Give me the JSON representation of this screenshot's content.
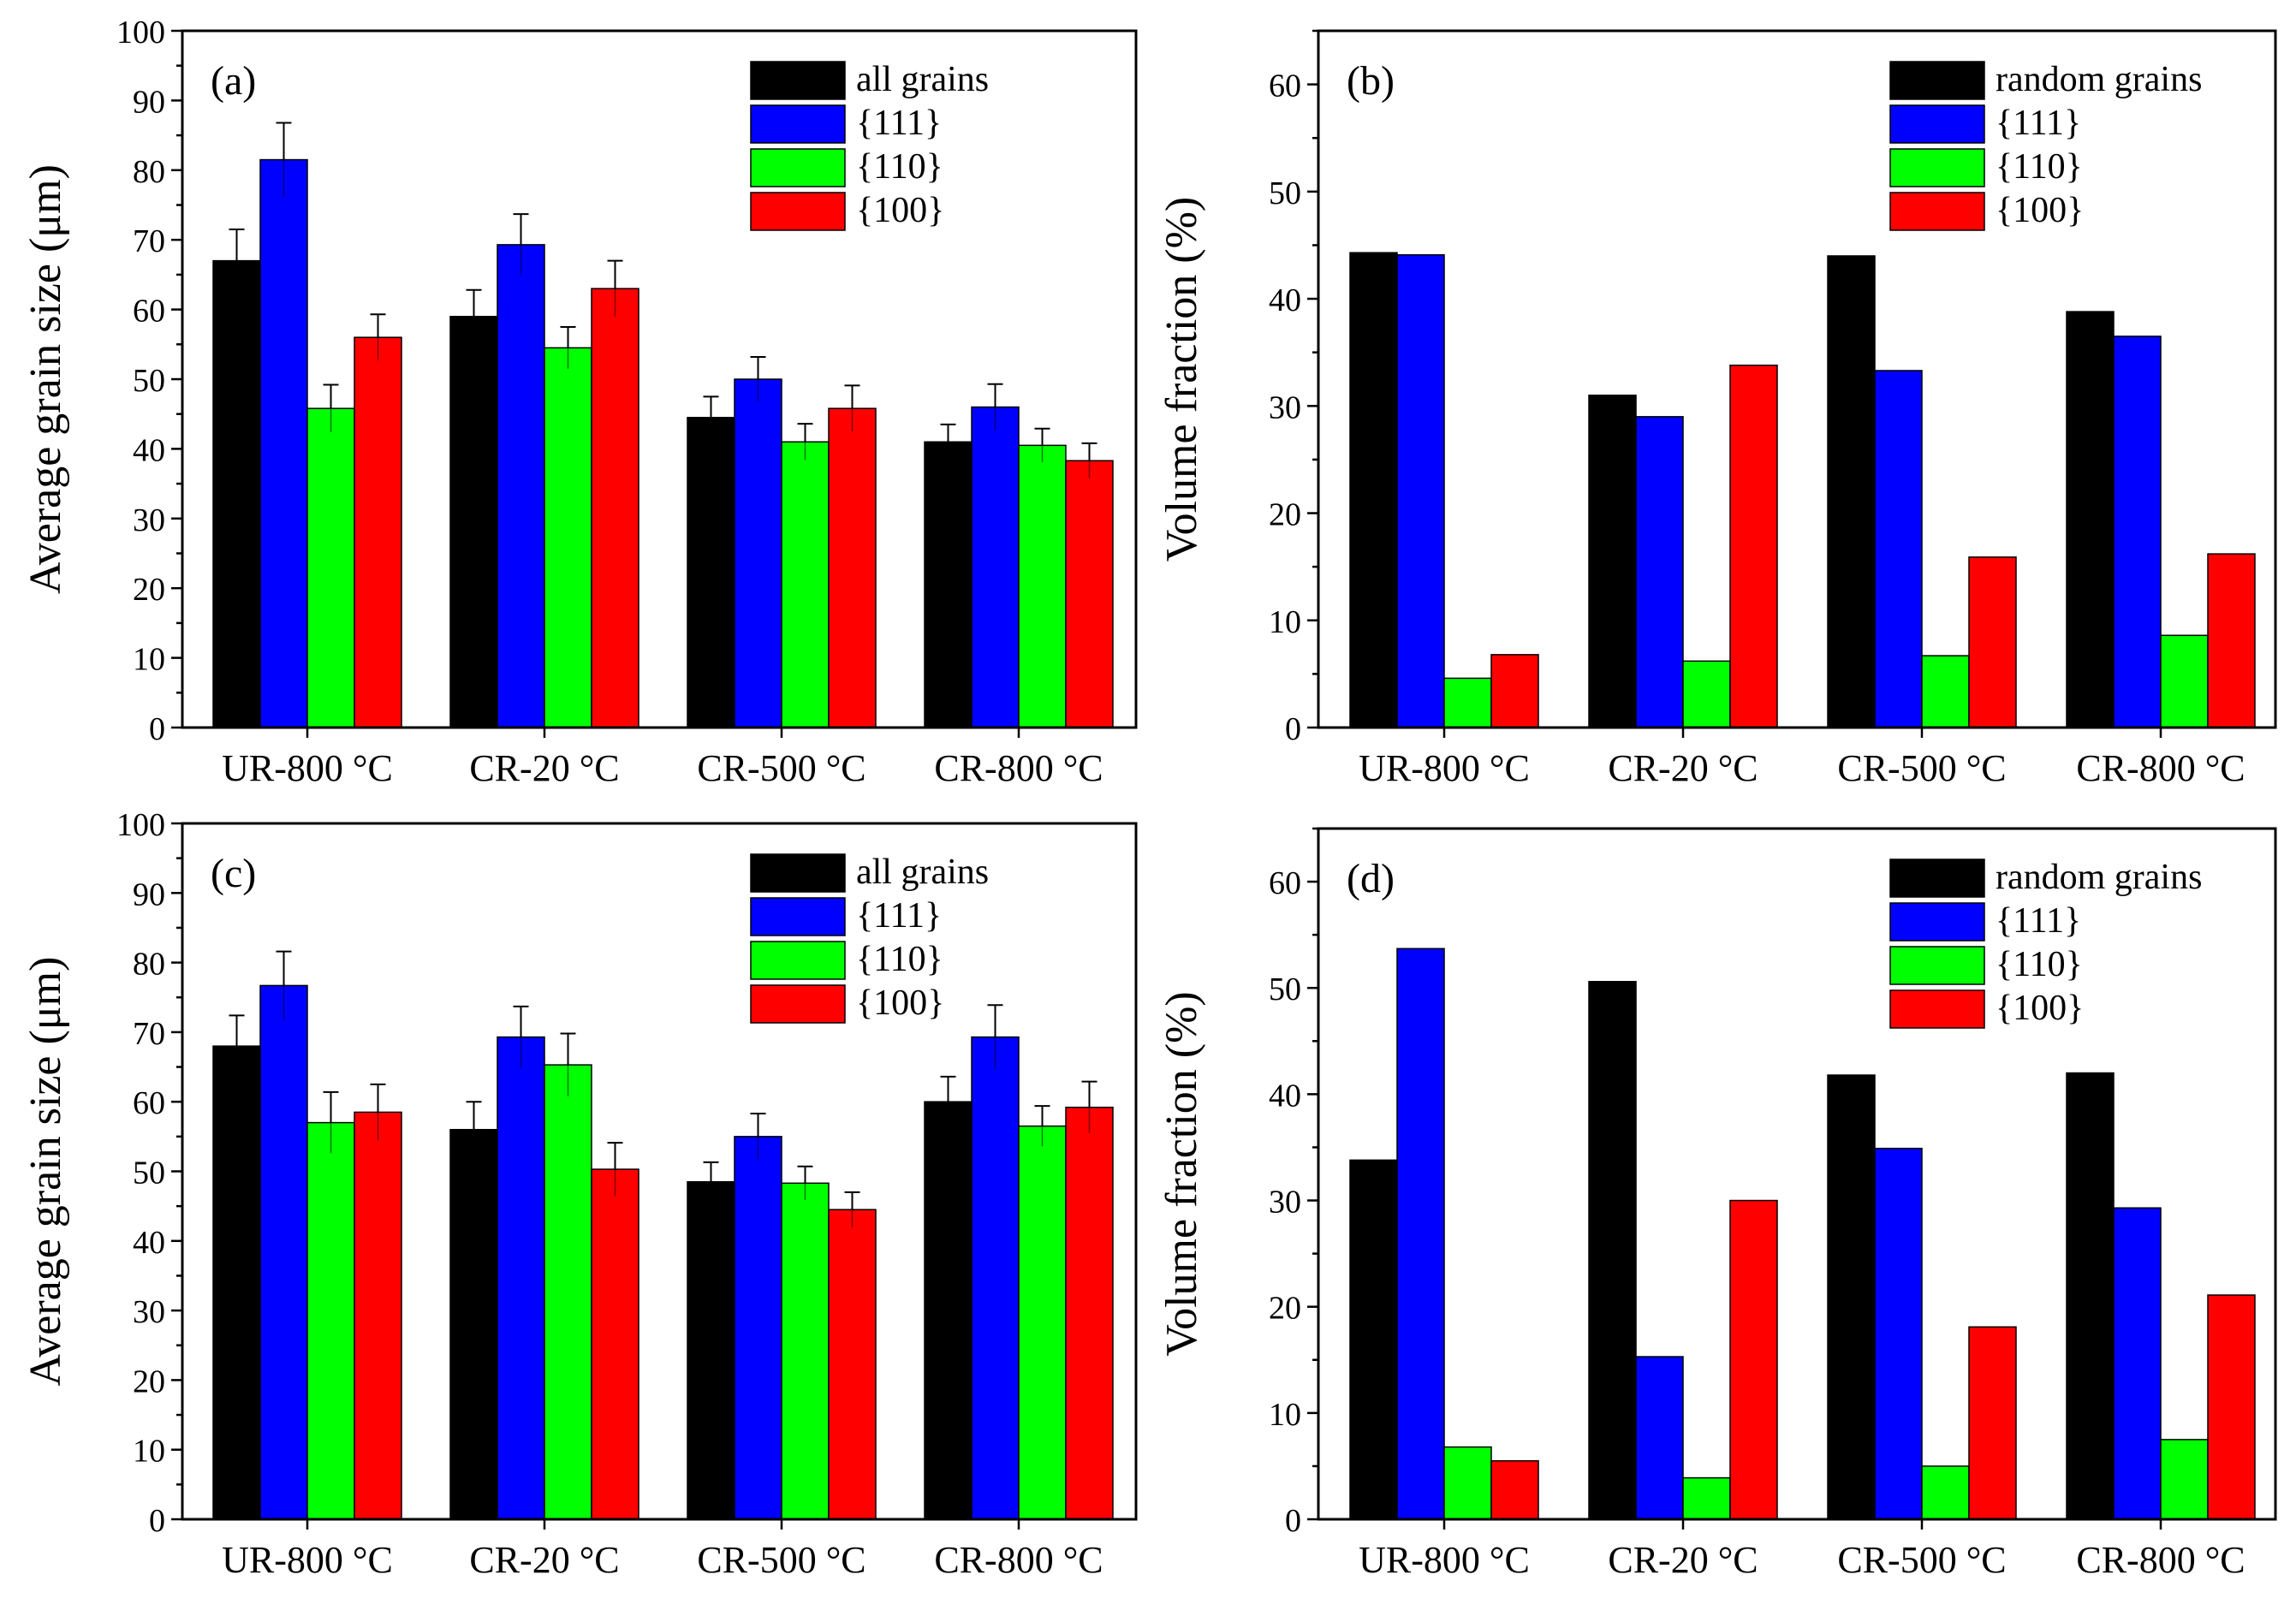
{
  "figure": {
    "categories": [
      "UR-800 °C",
      "CR-20 °C",
      "CR-500 °C",
      "CR-800 °C"
    ],
    "colors": {
      "all": "#000000",
      "t111": "#0000ff",
      "t110": "#00ff00",
      "t100": "#ff0000"
    }
  },
  "chart_data": [
    {
      "id": "a",
      "type": "bar",
      "panel_label": "(a)",
      "ylabel": "Average grain size (μm)",
      "xlabel": "",
      "ylim": [
        0,
        100
      ],
      "ytick_step": 10,
      "minor_step": 5,
      "categories": [
        "UR-800 °C",
        "CR-20 °C",
        "CR-500 °C",
        "CR-800 °C"
      ],
      "legend_position": "top-right",
      "series": [
        {
          "name": "all grains",
          "color": "#000000",
          "values": [
            67,
            59,
            44.5,
            41
          ],
          "errors": [
            4.5,
            3.8,
            3.0,
            2.5
          ]
        },
        {
          "name": "{111}",
          "color": "#0000ff",
          "values": [
            81.5,
            69.3,
            50,
            46
          ],
          "errors": [
            5.3,
            4.4,
            3.2,
            3.3
          ]
        },
        {
          "name": "{110}",
          "color": "#00ff00",
          "values": [
            45.8,
            54.5,
            41,
            40.5
          ],
          "errors": [
            3.4,
            3.0,
            2.6,
            2.4
          ]
        },
        {
          "name": "{100}",
          "color": "#ff0000",
          "values": [
            56,
            63,
            45.8,
            38.3
          ],
          "errors": [
            3.3,
            4.0,
            3.3,
            2.5
          ]
        }
      ]
    },
    {
      "id": "b",
      "type": "bar",
      "panel_label": "(b)",
      "ylabel": "Volume fraction (%)",
      "xlabel": "",
      "ylim": [
        0,
        65
      ],
      "ytick_step": 10,
      "minor_step": 5,
      "categories": [
        "UR-800 °C",
        "CR-20 °C",
        "CR-500 °C",
        "CR-800 °C"
      ],
      "legend_position": "top-right",
      "series": [
        {
          "name": "random grains",
          "color": "#000000",
          "values": [
            44.3,
            31,
            44,
            38.8
          ]
        },
        {
          "name": "{111}",
          "color": "#0000ff",
          "values": [
            44.1,
            29,
            33.3,
            36.5
          ]
        },
        {
          "name": "{110}",
          "color": "#00ff00",
          "values": [
            4.6,
            6.2,
            6.7,
            8.6
          ]
        },
        {
          "name": "{100}",
          "color": "#ff0000",
          "values": [
            6.8,
            33.8,
            15.9,
            16.2
          ]
        }
      ]
    },
    {
      "id": "c",
      "type": "bar",
      "panel_label": "(c)",
      "ylabel": "Average grain size (μm)",
      "xlabel": "",
      "ylim": [
        0,
        100
      ],
      "ytick_step": 10,
      "minor_step": 5,
      "categories": [
        "UR-800 °C",
        "CR-20 °C",
        "CR-500 °C",
        "CR-800 °C"
      ],
      "legend_position": "top-right",
      "series": [
        {
          "name": "all grains",
          "color": "#000000",
          "values": [
            68,
            56,
            48.5,
            60
          ],
          "errors": [
            4.4,
            4.0,
            2.8,
            3.6
          ]
        },
        {
          "name": "{111}",
          "color": "#0000ff",
          "values": [
            76.7,
            69.3,
            55,
            69.3
          ],
          "errors": [
            4.9,
            4.4,
            3.3,
            4.6
          ]
        },
        {
          "name": "{110}",
          "color": "#00ff00",
          "values": [
            57,
            65.3,
            48.3,
            56.5
          ],
          "errors": [
            4.4,
            4.5,
            2.4,
            2.9
          ]
        },
        {
          "name": "{100}",
          "color": "#ff0000",
          "values": [
            58.5,
            50.3,
            44.5,
            59.2
          ],
          "errors": [
            4.0,
            3.8,
            2.5,
            3.7
          ]
        }
      ]
    },
    {
      "id": "d",
      "type": "bar",
      "panel_label": "(d)",
      "ylabel": "Volume fraction (%)",
      "xlabel": "",
      "ylim": [
        0,
        65
      ],
      "ytick_step": 10,
      "minor_step": 5,
      "categories": [
        "UR-800 °C",
        "CR-20 °C",
        "CR-500 °C",
        "CR-800 °C"
      ],
      "legend_position": "top-right",
      "series": [
        {
          "name": "random grains",
          "color": "#000000",
          "values": [
            33.8,
            50.6,
            41.8,
            42
          ]
        },
        {
          "name": "{111}",
          "color": "#0000ff",
          "values": [
            53.7,
            15.3,
            34.9,
            29.3
          ]
        },
        {
          "name": "{110}",
          "color": "#00ff00",
          "values": [
            6.8,
            3.9,
            5,
            7.5
          ]
        },
        {
          "name": "{100}",
          "color": "#ff0000",
          "values": [
            5.5,
            30,
            18.1,
            21.1
          ]
        }
      ]
    }
  ]
}
